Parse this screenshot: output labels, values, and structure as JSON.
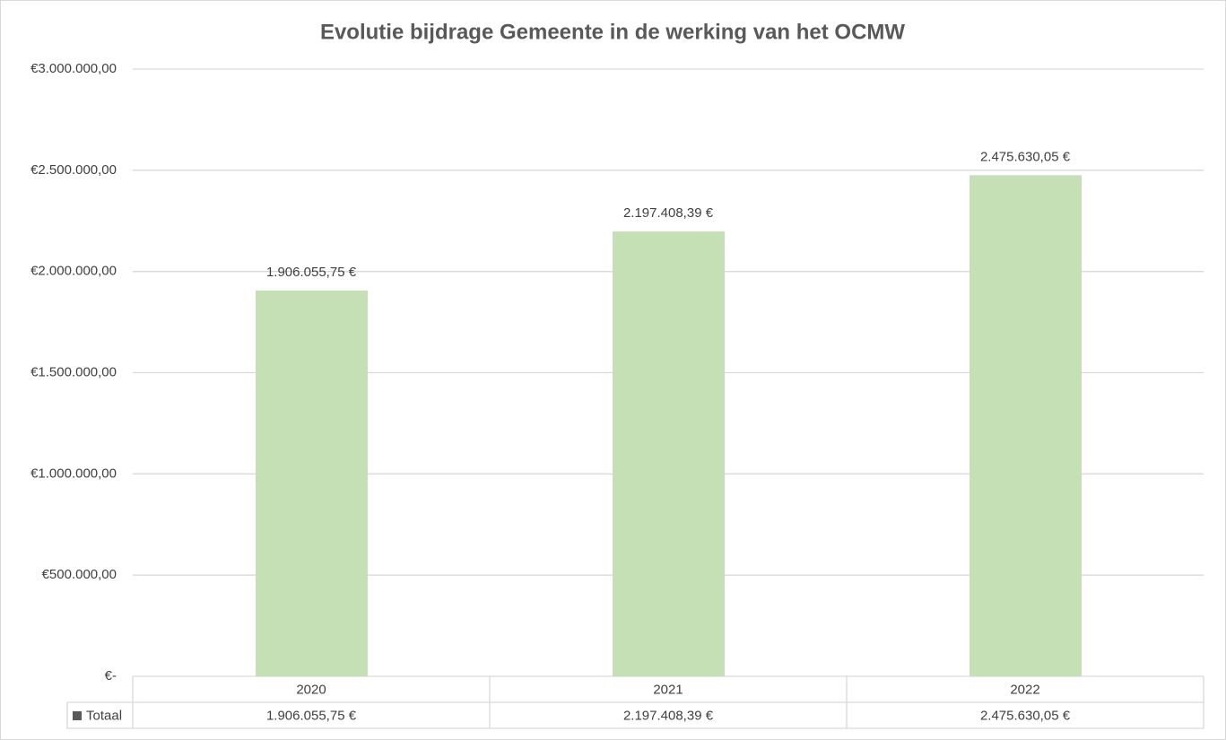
{
  "chart_data": {
    "type": "bar",
    "title": "Evolutie bijdrage Gemeente in de werking van het OCMW",
    "categories": [
      "2020",
      "2021",
      "2022"
    ],
    "series": [
      {
        "name": "Totaal",
        "color": "#c5e0b4",
        "values": [
          1906055.75,
          2197408.39,
          2475630.05
        ],
        "value_labels": [
          "1.906.055,75 €",
          "2.197.408,39 €",
          "2.475.630,05 €"
        ]
      }
    ],
    "ylim": [
      0,
      3000000
    ],
    "yticks": [
      {
        "value": 0,
        "label": "€-"
      },
      {
        "value": 500000,
        "label": "€500.000,00"
      },
      {
        "value": 1000000,
        "label": "€1.000.000,00"
      },
      {
        "value": 1500000,
        "label": "€1.500.000,00"
      },
      {
        "value": 2000000,
        "label": "€2.000.000,00"
      },
      {
        "value": 2500000,
        "label": "€2.500.000,00"
      },
      {
        "value": 3000000,
        "label": "€3.000.000,00"
      }
    ],
    "grid": true
  }
}
